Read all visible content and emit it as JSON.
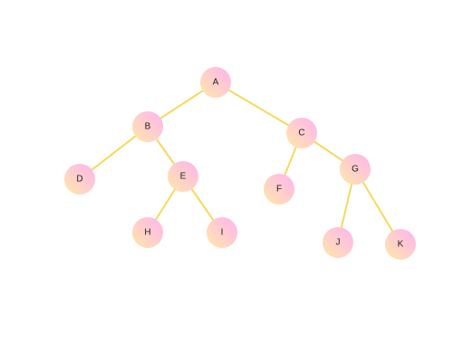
{
  "tree": {
    "root": "A",
    "nodes": [
      {
        "id": "A",
        "label": "A"
      },
      {
        "id": "B",
        "label": "B"
      },
      {
        "id": "C",
        "label": "C"
      },
      {
        "id": "D",
        "label": "D"
      },
      {
        "id": "E",
        "label": "E"
      },
      {
        "id": "F",
        "label": "F"
      },
      {
        "id": "G",
        "label": "G"
      },
      {
        "id": "H",
        "label": "H"
      },
      {
        "id": "I",
        "label": "I"
      },
      {
        "id": "J",
        "label": "J"
      },
      {
        "id": "K",
        "label": "K"
      }
    ],
    "edges": [
      {
        "from": "A",
        "to": "B"
      },
      {
        "from": "A",
        "to": "C"
      },
      {
        "from": "B",
        "to": "D"
      },
      {
        "from": "B",
        "to": "E"
      },
      {
        "from": "E",
        "to": "H"
      },
      {
        "from": "E",
        "to": "I"
      },
      {
        "from": "C",
        "to": "F"
      },
      {
        "from": "C",
        "to": "G"
      },
      {
        "from": "G",
        "to": "J"
      },
      {
        "from": "G",
        "to": "K"
      }
    ]
  },
  "colors": {
    "edge": "#f7d95a",
    "node_gradient_start": "#ffe9a8",
    "node_gradient_end": "#ffb3f0",
    "label": "#222222"
  }
}
